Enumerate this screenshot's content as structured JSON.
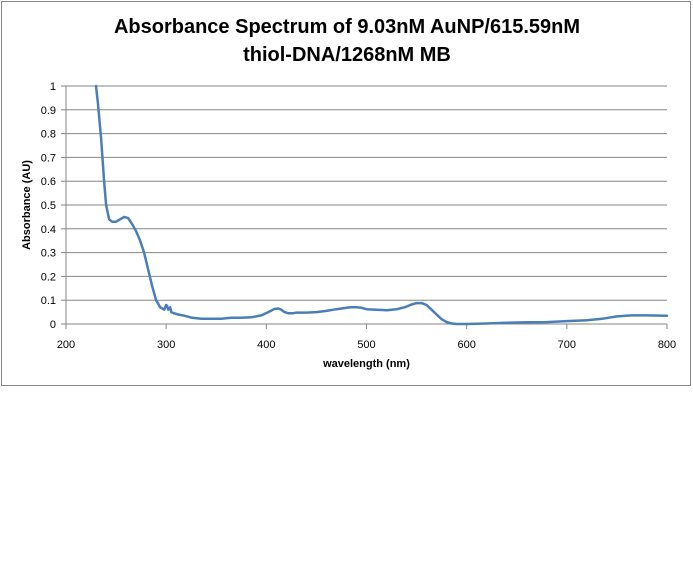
{
  "chart_data": {
    "type": "line",
    "title_line1": "Absorbance Spectrum of 9.03nM  AuNP/615.59nM",
    "title_line2": "thiol-DNA/1268nM MB",
    "xlabel": "wavelength (nm)",
    "ylabel": "Absorbance (AU)",
    "xlim": [
      200,
      800
    ],
    "ylim": [
      0,
      1
    ],
    "x_ticks": [
      "200",
      "300",
      "400",
      "500",
      "600",
      "700",
      "800"
    ],
    "y_ticks": [
      "0",
      "0.1",
      "0.2",
      "0.3",
      "0.4",
      "0.5",
      "0.6",
      "0.7",
      "0.8",
      "0.9",
      "1"
    ],
    "grid": "horizontal",
    "legend": "none",
    "line_color": "#4a7ebb",
    "series": [
      {
        "x": [
          230,
          232,
          235,
          238,
          240,
          243,
          246,
          250,
          254,
          258,
          262,
          266,
          270,
          274,
          278,
          282,
          286,
          290,
          294,
          298,
          300,
          301,
          302,
          304,
          305,
          308,
          312,
          318,
          325,
          335,
          345,
          355,
          365,
          375,
          385,
          395,
          402,
          408,
          412,
          415,
          418,
          422,
          426,
          430,
          440,
          450,
          460,
          470,
          480,
          485,
          490,
          495,
          500,
          510,
          520,
          530,
          538,
          545,
          550,
          555,
          560,
          565,
          570,
          575,
          580,
          585,
          590,
          600,
          620,
          640,
          660,
          680,
          700,
          720,
          735,
          750,
          765,
          780,
          800
        ],
        "y": [
          1.0,
          0.92,
          0.78,
          0.6,
          0.5,
          0.44,
          0.43,
          0.43,
          0.44,
          0.45,
          0.445,
          0.42,
          0.39,
          0.35,
          0.3,
          0.23,
          0.16,
          0.1,
          0.07,
          0.06,
          0.08,
          0.075,
          0.06,
          0.07,
          0.05,
          0.045,
          0.04,
          0.035,
          0.027,
          0.022,
          0.022,
          0.022,
          0.026,
          0.026,
          0.028,
          0.036,
          0.05,
          0.063,
          0.065,
          0.06,
          0.05,
          0.045,
          0.045,
          0.048,
          0.048,
          0.05,
          0.055,
          0.062,
          0.068,
          0.07,
          0.07,
          0.068,
          0.062,
          0.06,
          0.058,
          0.062,
          0.07,
          0.082,
          0.088,
          0.088,
          0.08,
          0.06,
          0.04,
          0.02,
          0.008,
          0.002,
          0.0,
          0.0,
          0.002,
          0.005,
          0.007,
          0.008,
          0.012,
          0.016,
          0.022,
          0.032,
          0.036,
          0.036,
          0.035
        ]
      }
    ]
  }
}
